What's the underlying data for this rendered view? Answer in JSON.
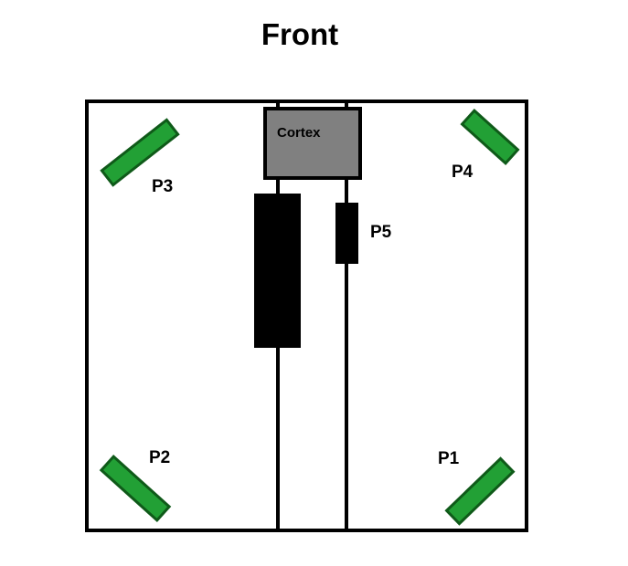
{
  "title": "Front",
  "colors": {
    "outline": "#000000",
    "background": "#ffffff",
    "controller_fill": "#808080",
    "pod_fill": "#22a035",
    "pod_border": "#0f5a19",
    "component_fill": "#000000"
  },
  "controller": {
    "label": "Cortex"
  },
  "ports": {
    "p1": "P1",
    "p2": "P2",
    "p3": "P3",
    "p4": "P4",
    "p5": "P5"
  }
}
